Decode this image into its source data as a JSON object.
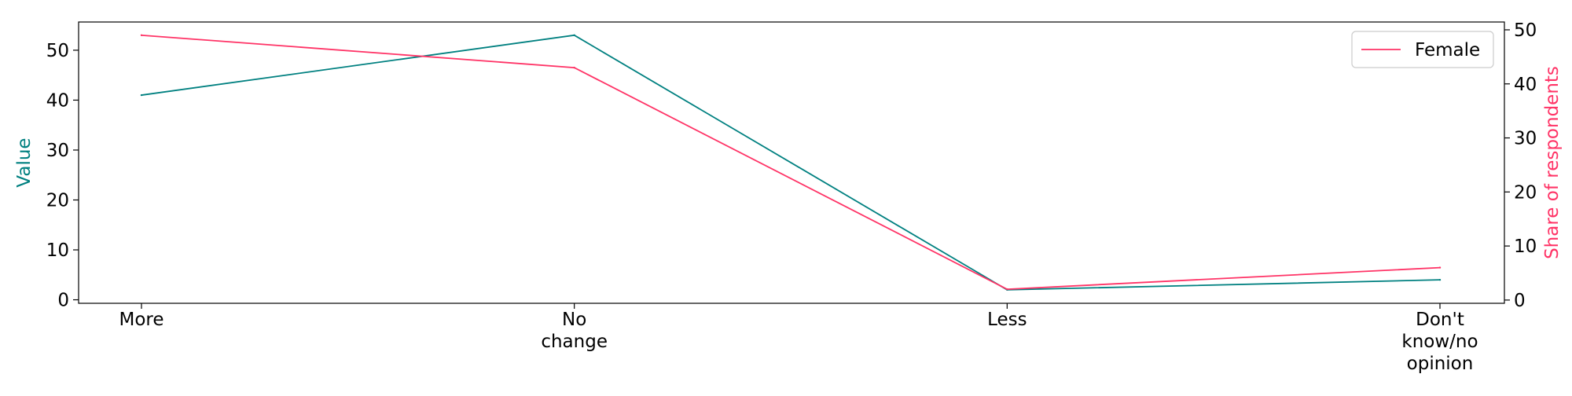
{
  "chart_data": {
    "type": "line",
    "categories": [
      [
        "More"
      ],
      [
        "No",
        "change"
      ],
      [
        "Less"
      ],
      [
        "Don't",
        "know/no",
        "opinion"
      ]
    ],
    "title": "",
    "xlabel": "",
    "ylabel_left": "Value",
    "ylabel_right": "Share of respondents",
    "ylim_left": [
      -0.7,
      55.65
    ],
    "ylim_right": [
      -0.6,
      51.45
    ],
    "yticks_left": [
      0,
      10,
      20,
      30,
      40,
      50
    ],
    "yticks_right": [
      0,
      10,
      20,
      30,
      40,
      50
    ],
    "grid": false,
    "legend": {
      "placement": "top-right",
      "entries": [
        "Female"
      ]
    },
    "series": [
      {
        "name": "",
        "axis": "left",
        "color": "#008080",
        "values": [
          41,
          53,
          2,
          4
        ]
      },
      {
        "name": "Female",
        "axis": "right",
        "color": "#ff3366",
        "values": [
          49,
          43,
          2,
          6
        ]
      }
    ],
    "colors": {
      "left_axis_label": "#008080",
      "right_axis_label": "#ff3366",
      "axis": "#000000"
    }
  }
}
